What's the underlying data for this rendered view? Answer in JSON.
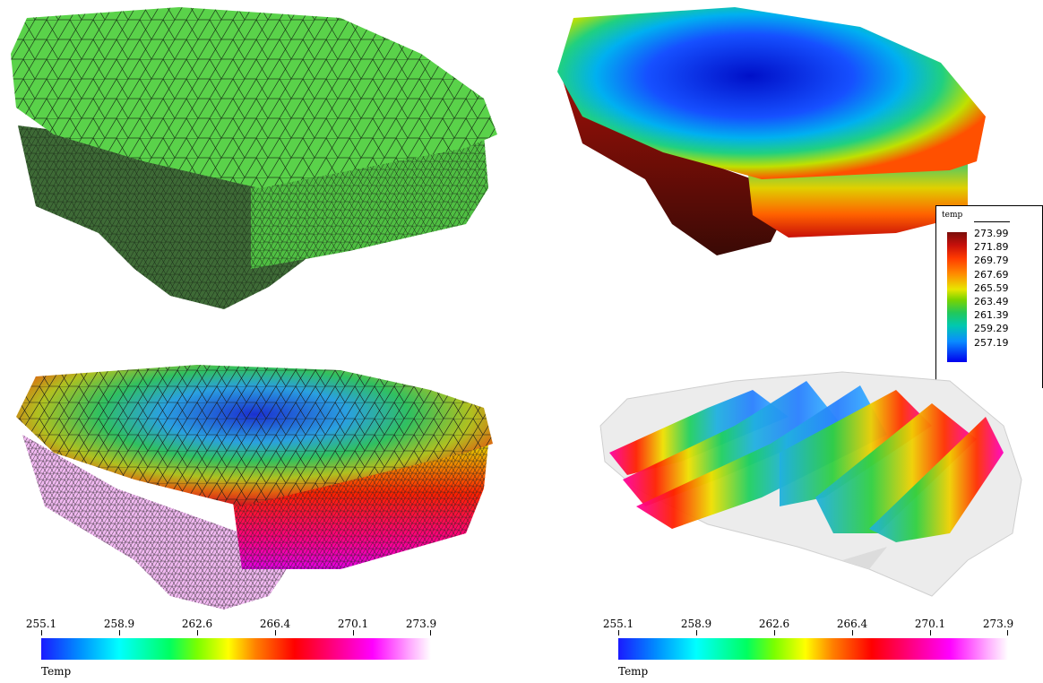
{
  "vertical_legend": {
    "title": "temp",
    "labels": [
      "273.99",
      "271.89",
      "269.79",
      "267.69",
      "265.59",
      "263.49",
      "261.39",
      "259.29",
      "257.19"
    ]
  },
  "horizontal_legends": [
    {
      "ticks": [
        "255.1",
        "258.9",
        "262.6",
        "266.4",
        "270.1",
        "273.9"
      ],
      "variable": "Temp"
    },
    {
      "ticks": [
        "255.1",
        "258.9",
        "262.6",
        "266.4",
        "270.1",
        "273.9"
      ],
      "variable": "Temp"
    }
  ],
  "colors": {
    "mesh_green": "#5ad24a",
    "mesh_dark": "#2f5a2a",
    "cold": "#0000ee",
    "hot": "#7a0d0a"
  }
}
